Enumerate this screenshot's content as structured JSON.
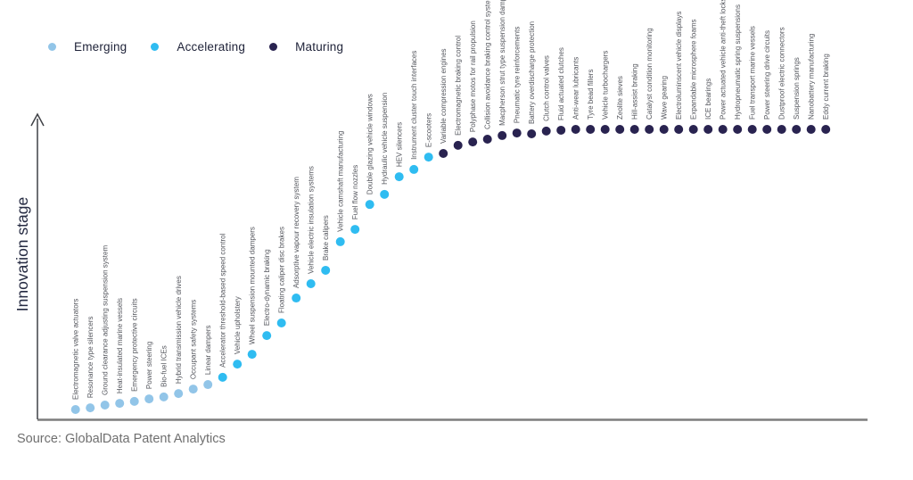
{
  "legend": {
    "items": [
      {
        "label": "Emerging",
        "color": "#92c5e8"
      },
      {
        "label": "Accelerating",
        "color": "#2fbcf1"
      },
      {
        "label": "Maturing",
        "color": "#292350"
      }
    ]
  },
  "y_axis_label": "Innovation stage",
  "source": "Source: GlobalData Patent Analytics",
  "colors": {
    "Emerging": "#92c5e8",
    "Accelerating": "#2fbcf1",
    "Maturing": "#292350",
    "label_text": "#55575e",
    "axis_y": "#3f4146",
    "axis_x": "#7d7d7d"
  },
  "chart_data": {
    "type": "scatter",
    "title": "",
    "xlabel": "",
    "ylabel": "Innovation stage",
    "grid": false,
    "legend_position": "top-left",
    "stages": [
      "Emerging",
      "Accelerating",
      "Maturing"
    ],
    "note": "level is the normalized innovation-stage height (0 = lowest dot, 1 = highest dot); items are ordered left to right",
    "items": [
      {
        "label": "Electromagnetic valve actuators",
        "stage": "Emerging",
        "level": 0.0
      },
      {
        "label": "Resonance type silencers",
        "stage": "Emerging",
        "level": 0.006
      },
      {
        "label": "Ground clearance adjusting suspension system",
        "stage": "Emerging",
        "level": 0.016
      },
      {
        "label": "Heat-insulated marine vessels",
        "stage": "Emerging",
        "level": 0.022
      },
      {
        "label": "Emergency protective circuits",
        "stage": "Emerging",
        "level": 0.029
      },
      {
        "label": "Power steering",
        "stage": "Emerging",
        "level": 0.038
      },
      {
        "label": "Bio-fuel ICEs",
        "stage": "Emerging",
        "level": 0.045
      },
      {
        "label": "Hybrid transmission vehicle drives",
        "stage": "Emerging",
        "level": 0.057
      },
      {
        "label": "Occupant safety systems",
        "stage": "Emerging",
        "level": 0.073
      },
      {
        "label": "Linear dampers",
        "stage": "Emerging",
        "level": 0.089
      },
      {
        "label": "Accelerator threshold-based speed control",
        "stage": "Accelerating",
        "level": 0.115
      },
      {
        "label": "Vehicle upholstery",
        "stage": "Accelerating",
        "level": 0.162
      },
      {
        "label": "Wheel suspension mounted dampers",
        "stage": "Accelerating",
        "level": 0.197
      },
      {
        "label": "Electro-dynamic braking",
        "stage": "Accelerating",
        "level": 0.264
      },
      {
        "label": "Floating caliper disc brakes",
        "stage": "Accelerating",
        "level": 0.309
      },
      {
        "label": "Adsorptive vapour recovery system",
        "stage": "Accelerating",
        "level": 0.398
      },
      {
        "label": "Vehicle electric insulation systems",
        "stage": "Accelerating",
        "level": 0.449
      },
      {
        "label": "Brake calipers",
        "stage": "Accelerating",
        "level": 0.497
      },
      {
        "label": "Vehicle camshaft manufacturing",
        "stage": "Accelerating",
        "level": 0.599
      },
      {
        "label": "Fuel flow nozzles",
        "stage": "Accelerating",
        "level": 0.643
      },
      {
        "label": "Double glazing vehicle windows",
        "stage": "Accelerating",
        "level": 0.732
      },
      {
        "label": "Hydraulic vehicle suspension",
        "stage": "Accelerating",
        "level": 0.768
      },
      {
        "label": "HEV silencers",
        "stage": "Accelerating",
        "level": 0.831
      },
      {
        "label": "Instrument cluster touch interfaces",
        "stage": "Accelerating",
        "level": 0.857
      },
      {
        "label": "E-scooters",
        "stage": "Accelerating",
        "level": 0.901
      },
      {
        "label": "Variable compression engines",
        "stage": "Maturing",
        "level": 0.914
      },
      {
        "label": "Electromagnetic braking control",
        "stage": "Maturing",
        "level": 0.943
      },
      {
        "label": "Polyphase motos for rail propulsion",
        "stage": "Maturing",
        "level": 0.955
      },
      {
        "label": "Collision avoidance braking control system",
        "stage": "Maturing",
        "level": 0.965
      },
      {
        "label": "Macpherson strut type suspension damper",
        "stage": "Maturing",
        "level": 0.978
      },
      {
        "label": "Pneumatic tyre reinforcements",
        "stage": "Maturing",
        "level": 0.987
      },
      {
        "label": "Battery overdischarge protection",
        "stage": "Maturing",
        "level": 0.984
      },
      {
        "label": "Clutch control valves",
        "stage": "Maturing",
        "level": 0.994
      },
      {
        "label": "Fluid actuated clutches",
        "stage": "Maturing",
        "level": 0.997
      },
      {
        "label": "Anti-wear lubricants",
        "stage": "Maturing",
        "level": 1.0
      },
      {
        "label": "Tyre bead fillers",
        "stage": "Maturing",
        "level": 1.0
      },
      {
        "label": "Vehicle turbochargers",
        "stage": "Maturing",
        "level": 1.0
      },
      {
        "label": "Zeolite sieves",
        "stage": "Maturing",
        "level": 1.0
      },
      {
        "label": "Hill-assist braking",
        "stage": "Maturing",
        "level": 1.0
      },
      {
        "label": "Catalyst condition monitoring",
        "stage": "Maturing",
        "level": 1.0
      },
      {
        "label": "Wave gearing",
        "stage": "Maturing",
        "level": 1.0
      },
      {
        "label": "Electroluminscent vehicle displays",
        "stage": "Maturing",
        "level": 1.0
      },
      {
        "label": "Expandable microsphere foams",
        "stage": "Maturing",
        "level": 1.0
      },
      {
        "label": "ICE bearings",
        "stage": "Maturing",
        "level": 1.0
      },
      {
        "label": "Power actuated vehicle anti-theft locks",
        "stage": "Maturing",
        "level": 1.0
      },
      {
        "label": "Hydropneumatic spring suspensions",
        "stage": "Maturing",
        "level": 1.0
      },
      {
        "label": "Fuel transport marine vessels",
        "stage": "Maturing",
        "level": 1.0
      },
      {
        "label": "Power steering drive circuits",
        "stage": "Maturing",
        "level": 1.0
      },
      {
        "label": "Dustproof electric connectors",
        "stage": "Maturing",
        "level": 1.0
      },
      {
        "label": "Suspension springs",
        "stage": "Maturing",
        "level": 1.0
      },
      {
        "label": "Nanobattery manufacturing",
        "stage": "Maturing",
        "level": 1.0
      },
      {
        "label": "Eddy current braking",
        "stage": "Maturing",
        "level": 1.0
      }
    ]
  }
}
